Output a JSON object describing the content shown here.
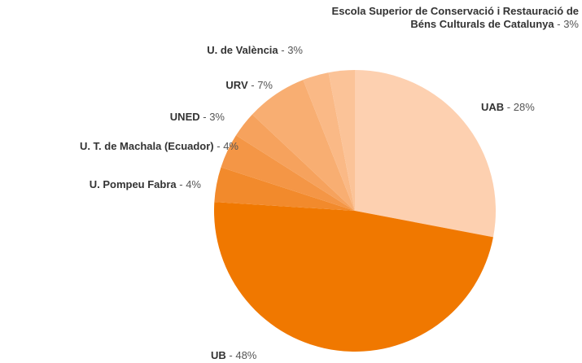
{
  "chart_data": {
    "type": "pie",
    "categories": [
      "UAB",
      "UB",
      "U. Pompeu Fabra",
      "U. T. de Machala (Ecuador)",
      "UNED",
      "URV",
      "U. de València",
      "Escola Superior de Conservació i Restauració de Béns Culturals de Catalunya"
    ],
    "values": [
      28,
      48,
      4,
      4,
      3,
      7,
      3,
      3
    ],
    "value_labels": [
      "28%",
      "48%",
      "4%",
      "4%",
      "3%",
      "7%",
      "3%",
      "3%"
    ],
    "separator": " - ",
    "colors": [
      "#fdd0b0",
      "#f07800",
      "#f28a2c",
      "#f49646",
      "#f6a25d",
      "#f8ae72",
      "#fab986",
      "#fbc398"
    ]
  }
}
